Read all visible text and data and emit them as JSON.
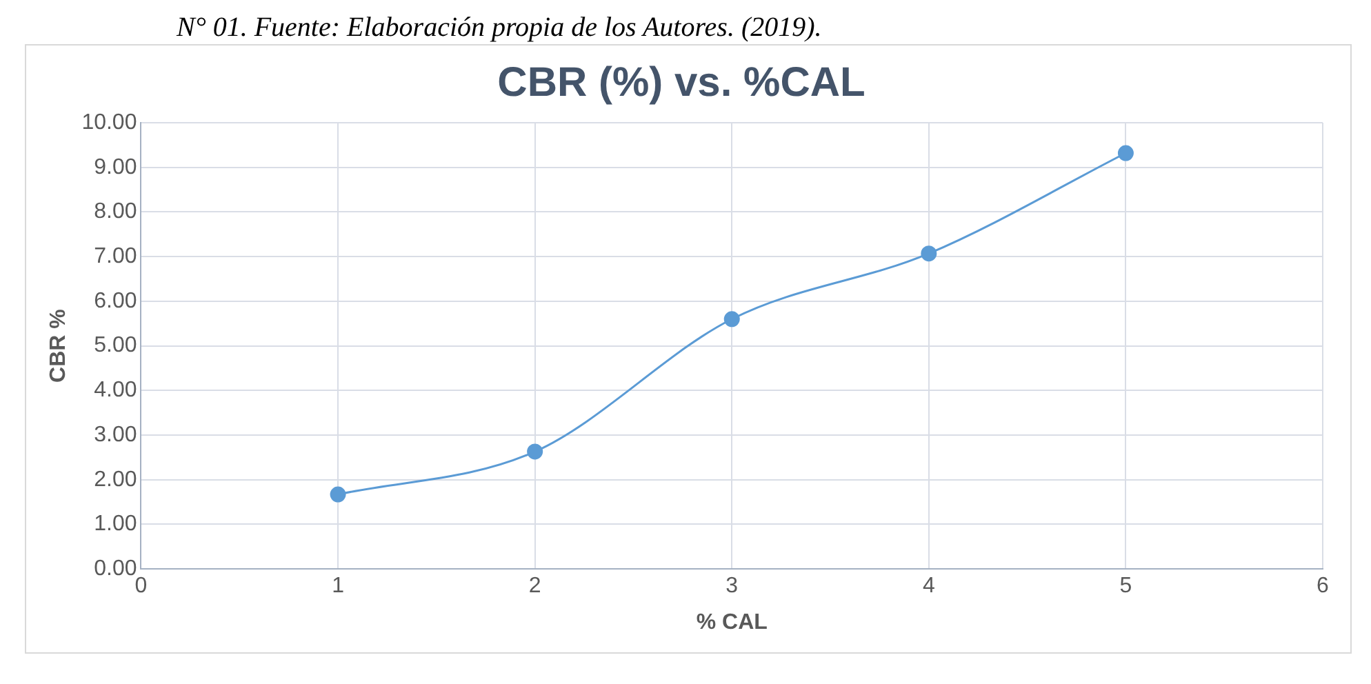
{
  "chart_data": {
    "type": "line",
    "title": "CBR (%) vs. %CAL",
    "xlabel": "% CAL",
    "ylabel": "CBR %",
    "annotations": [
      "N° 01. Fuente: Elaboración propia de los Autores. (2019)."
    ],
    "x": [
      1,
      2,
      3,
      4,
      5
    ],
    "series": [
      {
        "color": "#5b9bd5",
        "values": [
          1.67,
          2.63,
          5.6,
          7.07,
          9.32
        ]
      }
    ],
    "xlim": [
      0,
      6
    ],
    "xticks": [
      0,
      1,
      2,
      3,
      4,
      5,
      6
    ],
    "ylim": [
      0,
      10
    ],
    "yticks": [
      {
        "value": 0,
        "label": "0.00"
      },
      {
        "value": 1,
        "label": "1.00"
      },
      {
        "value": 2,
        "label": "2.00"
      },
      {
        "value": 3,
        "label": "3.00"
      },
      {
        "value": 4,
        "label": "4.00"
      },
      {
        "value": 5,
        "label": "5.00"
      },
      {
        "value": 6,
        "label": "6.00"
      },
      {
        "value": 7,
        "label": "7.00"
      },
      {
        "value": 8,
        "label": "8.00"
      },
      {
        "value": 9,
        "label": "9.00"
      },
      {
        "value": 10,
        "label": "10.00"
      }
    ],
    "grid": true,
    "legend": false,
    "marker": "circle",
    "line_style": "solid"
  }
}
